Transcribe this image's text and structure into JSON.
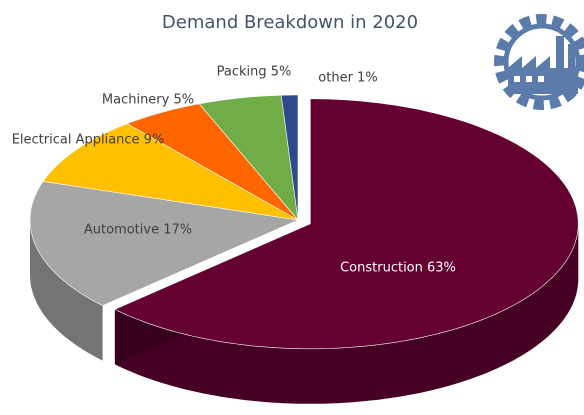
{
  "chart_data": {
    "type": "pie3d",
    "title": "Demand Breakdown in 2020",
    "values": [
      63,
      17,
      9,
      5,
      5,
      1
    ],
    "value_labels": [
      "Construction 63%",
      "Automotive 17%",
      "Electrical Appliance 9%",
      "Machinery 5%",
      "Packing 5%",
      "other 1%"
    ],
    "colors": [
      "#640032",
      "#a6a6a6",
      "#ffc000",
      "#ff6600",
      "#70ad47",
      "#2e4a8c"
    ],
    "exploded": [
      0
    ]
  }
}
